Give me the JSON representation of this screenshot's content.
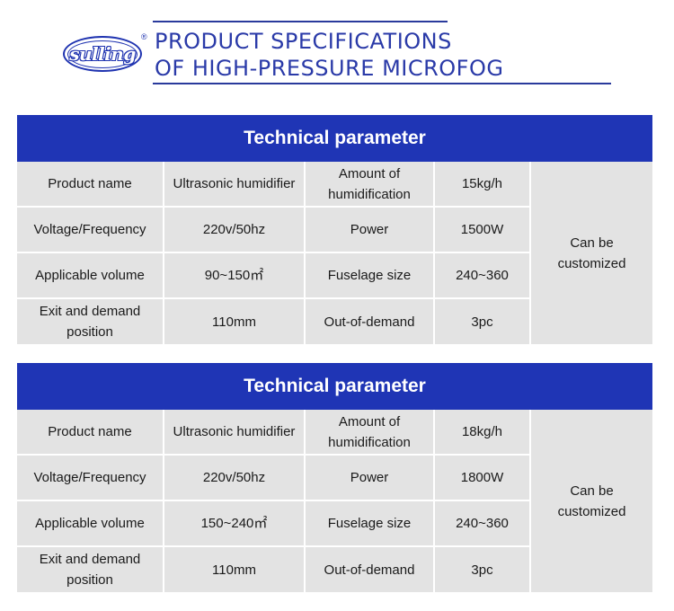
{
  "header": {
    "logo_text": "sulling",
    "registered_mark": "®",
    "title_line1": "PRODUCT SPECIFICATIONS",
    "title_line2": "OF HIGH-PRESSURE MICROFOG"
  },
  "colors": {
    "brand_blue": "#1f35b5",
    "title_blue": "#2a3aa8",
    "cell_gray": "#e3e3e3"
  },
  "tables": [
    {
      "heading": "Technical parameter",
      "rows": [
        [
          "Product name",
          "Ultrasonic humidifier",
          "Amount of humidification",
          "15kg/h"
        ],
        [
          "Voltage/Frequency",
          "220v/50hz",
          "Power",
          "1500W"
        ],
        [
          "Applicable volume",
          "90~150㎡",
          "Fuselage size",
          "240~360"
        ],
        [
          "Exit and demand position",
          "110mm",
          "Out-of-demand",
          "3pc"
        ]
      ],
      "note": "Can be customized"
    },
    {
      "heading": "Technical parameter",
      "rows": [
        [
          "Product name",
          "Ultrasonic humidifier",
          "Amount of humidification",
          "18kg/h"
        ],
        [
          "Voltage/Frequency",
          "220v/50hz",
          "Power",
          "1800W"
        ],
        [
          "Applicable volume",
          "150~240㎡",
          "Fuselage size",
          "240~360"
        ],
        [
          "Exit and demand position",
          "110mm",
          "Out-of-demand",
          "3pc"
        ]
      ],
      "note": "Can be customized"
    }
  ]
}
